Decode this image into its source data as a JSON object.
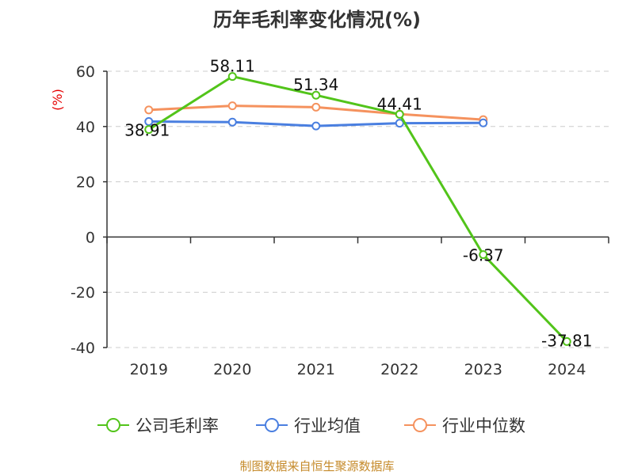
{
  "source_text": "制图数据来自恒生聚源数据库",
  "chart_data": {
    "type": "line",
    "title": "历年毛利率变化情况(%)",
    "ylabel": "(%)",
    "xlabel": "",
    "categories": [
      "2019",
      "2020",
      "2021",
      "2022",
      "2023",
      "2024"
    ],
    "ylim": [
      -40,
      60
    ],
    "yticks": [
      60,
      40,
      20,
      0,
      -20,
      -40
    ],
    "grid": true,
    "legend_position": "bottom",
    "series": [
      {
        "name": "公司毛利率",
        "color": "#52c41a",
        "values": [
          38.91,
          58.11,
          51.34,
          44.41,
          -6.37,
          -37.81
        ],
        "labels": [
          "38.91",
          "58.11",
          "51.34",
          "44.41",
          "-6.37",
          "-37.81"
        ]
      },
      {
        "name": "行业均值",
        "color": "#4a7fe0",
        "values": [
          41.8,
          41.6,
          40.2,
          41.2,
          41.3,
          null
        ]
      },
      {
        "name": "行业中位数",
        "color": "#f5925e",
        "values": [
          46.0,
          47.5,
          47.0,
          44.5,
          42.5,
          null
        ]
      }
    ]
  }
}
